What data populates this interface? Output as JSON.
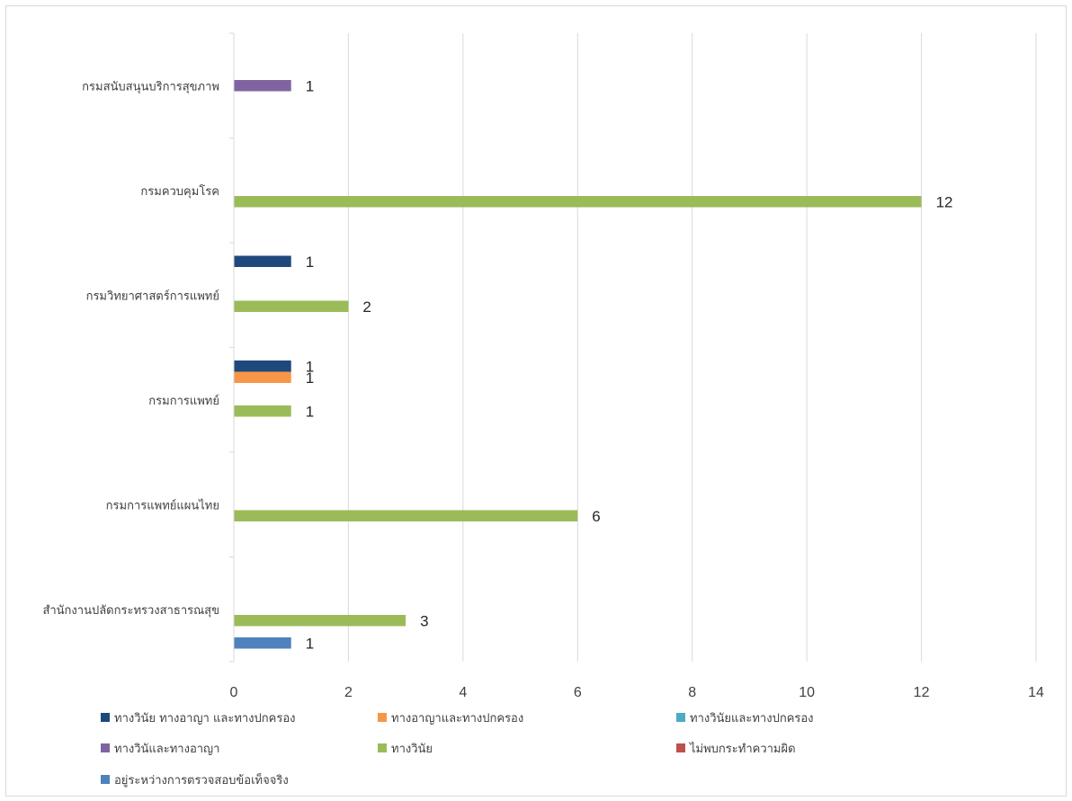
{
  "chart_data": {
    "type": "bar",
    "orientation": "horizontal",
    "categories": [
      "สำนักงานปลัดกระทรวงสาธารณสุข",
      "กรมการแพทย์แผนไทย",
      "กรมการแพทย์",
      "กรมวิทยาศาสตร์การแพทย์",
      "กรมควบคุมโรค",
      "กรมสนับสนุนบริการสุขภาพ"
    ],
    "series": [
      {
        "name": "อยู่ระหว่างการตรวจสอบข้อเท็จจริง",
        "color": "#4F81BD",
        "values": [
          1,
          null,
          null,
          null,
          null,
          null
        ]
      },
      {
        "name": "ไม่พบกระทำความผิด",
        "color": "#C0504D",
        "values": [
          null,
          null,
          null,
          null,
          null,
          null
        ]
      },
      {
        "name": "ทางวินัย",
        "color": "#9BBB59",
        "values": [
          3,
          6,
          1,
          2,
          12,
          null
        ]
      },
      {
        "name": "ทางวินัและทางอาญา",
        "color": "#8064A2",
        "values": [
          null,
          null,
          null,
          null,
          null,
          1
        ]
      },
      {
        "name": "ทางวินัยและทางปกครอง",
        "color": "#4BACC6",
        "values": [
          null,
          null,
          null,
          null,
          null,
          null
        ]
      },
      {
        "name": "ทางอาญาและทางปกครอง",
        "color": "#F79646",
        "values": [
          null,
          null,
          1,
          null,
          null,
          null
        ]
      },
      {
        "name": "ทางวินัย ทางอาญา และทางปกครอง",
        "color": "#1F497D",
        "values": [
          null,
          null,
          1,
          1,
          null,
          null
        ]
      }
    ],
    "legend_order": [
      6,
      5,
      4,
      3,
      2,
      1,
      0
    ],
    "xlim": [
      0,
      14
    ],
    "xticks": [
      "0",
      "2",
      "4",
      "6",
      "8",
      "10",
      "12",
      "14"
    ],
    "grid": "vertical",
    "legend_position": "bottom",
    "data_labels": true
  }
}
